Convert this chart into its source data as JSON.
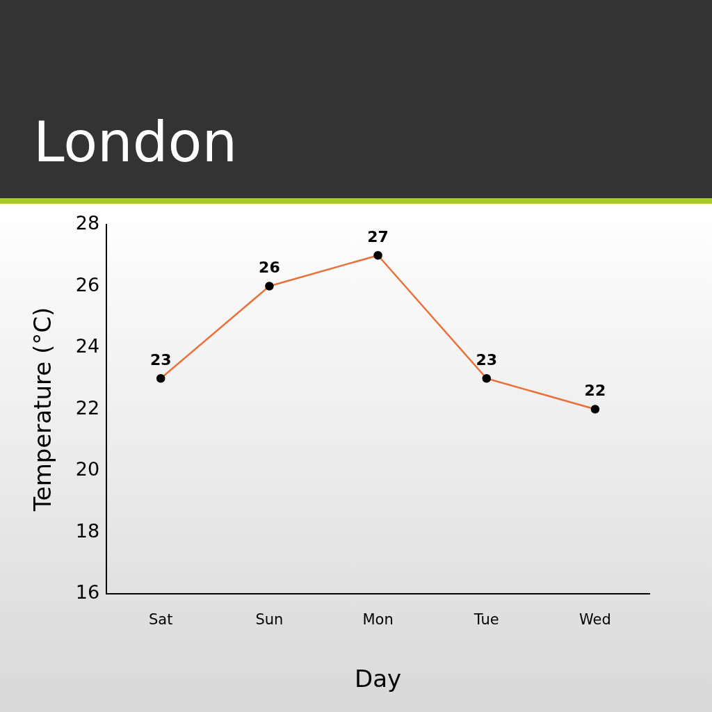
{
  "chart_data": {
    "type": "line",
    "title": "London",
    "xlabel": "Day",
    "ylabel": "Temperature (°C)",
    "categories": [
      "Sat",
      "Sun",
      "Mon",
      "Tue",
      "Wed"
    ],
    "series": [
      {
        "color": "#e8703a",
        "values": [
          23,
          26,
          27,
          23,
          22
        ]
      }
    ],
    "ylim": [
      16,
      28
    ],
    "yticks": [
      16,
      18,
      20,
      22,
      24,
      26,
      28
    ],
    "grid": false,
    "legend": false,
    "marker": "circle",
    "line_style": "solid",
    "data_labels": true
  }
}
